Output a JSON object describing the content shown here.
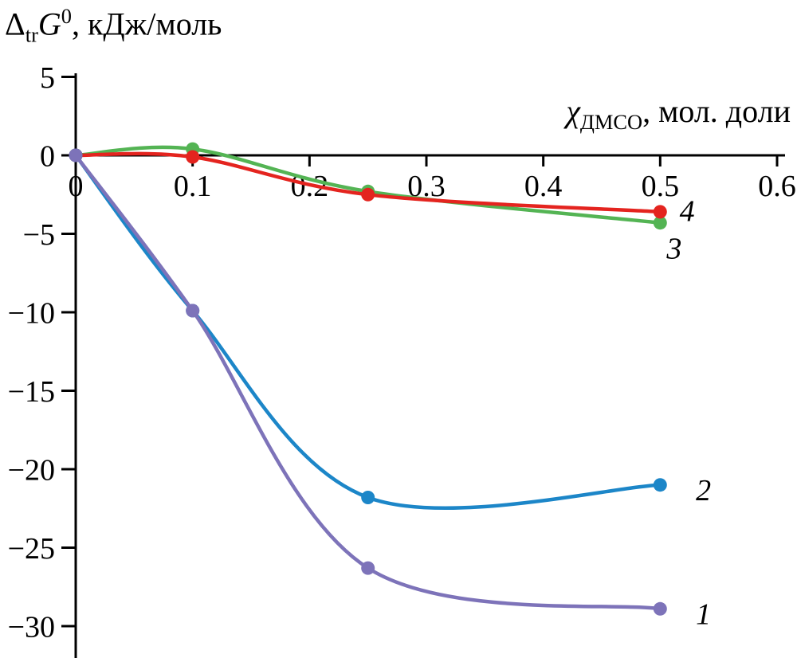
{
  "labels": {
    "y_title": {
      "delta": "Δ",
      "sub": "tr",
      "g": "G",
      "sup": "0",
      "rest": ", кДж/моль"
    },
    "x_title": {
      "chi": "χ",
      "sub": "ДМСО",
      "rest": ", мол. доли"
    }
  },
  "chart_data": {
    "type": "line",
    "title": "",
    "xlabel": "χДМСО, мол. доли",
    "ylabel": "ΔtrG0, кДж/моль",
    "xlim": [
      0,
      0.6
    ],
    "ylim": [
      -30,
      5
    ],
    "grid": false,
    "axis_color": "#000000",
    "x_ticks": [
      {
        "v": 0,
        "label": "0"
      },
      {
        "v": 0.1,
        "label": "0.1"
      },
      {
        "v": 0.2,
        "label": "0.2"
      },
      {
        "v": 0.3,
        "label": "0.3"
      },
      {
        "v": 0.4,
        "label": "0.4"
      },
      {
        "v": 0.5,
        "label": "0.5"
      },
      {
        "v": 0.6,
        "label": "0.6"
      }
    ],
    "y_ticks": [
      {
        "v": 5,
        "label": "5"
      },
      {
        "v": 0,
        "label": "0"
      },
      {
        "v": -5,
        "label": "−5"
      },
      {
        "v": -10,
        "label": "−10"
      },
      {
        "v": -15,
        "label": "−15"
      },
      {
        "v": -20,
        "label": "−20"
      },
      {
        "v": -25,
        "label": "−25"
      },
      {
        "v": -30,
        "label": "−30"
      }
    ],
    "series": [
      {
        "name": "3",
        "color": "#54b454",
        "x": [
          0,
          0.1,
          0.25,
          0.5
        ],
        "y": [
          0,
          0.4,
          -2.3,
          -4.3
        ],
        "label": {
          "x": 0.512,
          "y": -5.9
        }
      },
      {
        "name": "4",
        "color": "#e4241f",
        "x": [
          0,
          0.1,
          0.25,
          0.5
        ],
        "y": [
          0,
          -0.1,
          -2.5,
          -3.6
        ],
        "label": {
          "x": 0.523,
          "y": -3.5
        }
      },
      {
        "name": "2",
        "color": "#1c86c8",
        "x": [
          0,
          0.1,
          0.25,
          0.5
        ],
        "y": [
          0,
          -9.9,
          -21.8,
          -21.0
        ],
        "label": {
          "x": 0.537,
          "y": -21.3
        }
      },
      {
        "name": "1",
        "color": "#7d73b9",
        "x": [
          0,
          0.1,
          0.25,
          0.5
        ],
        "y": [
          0,
          -9.9,
          -26.3,
          -28.9
        ],
        "label": {
          "x": 0.537,
          "y": -29.2
        }
      }
    ]
  }
}
